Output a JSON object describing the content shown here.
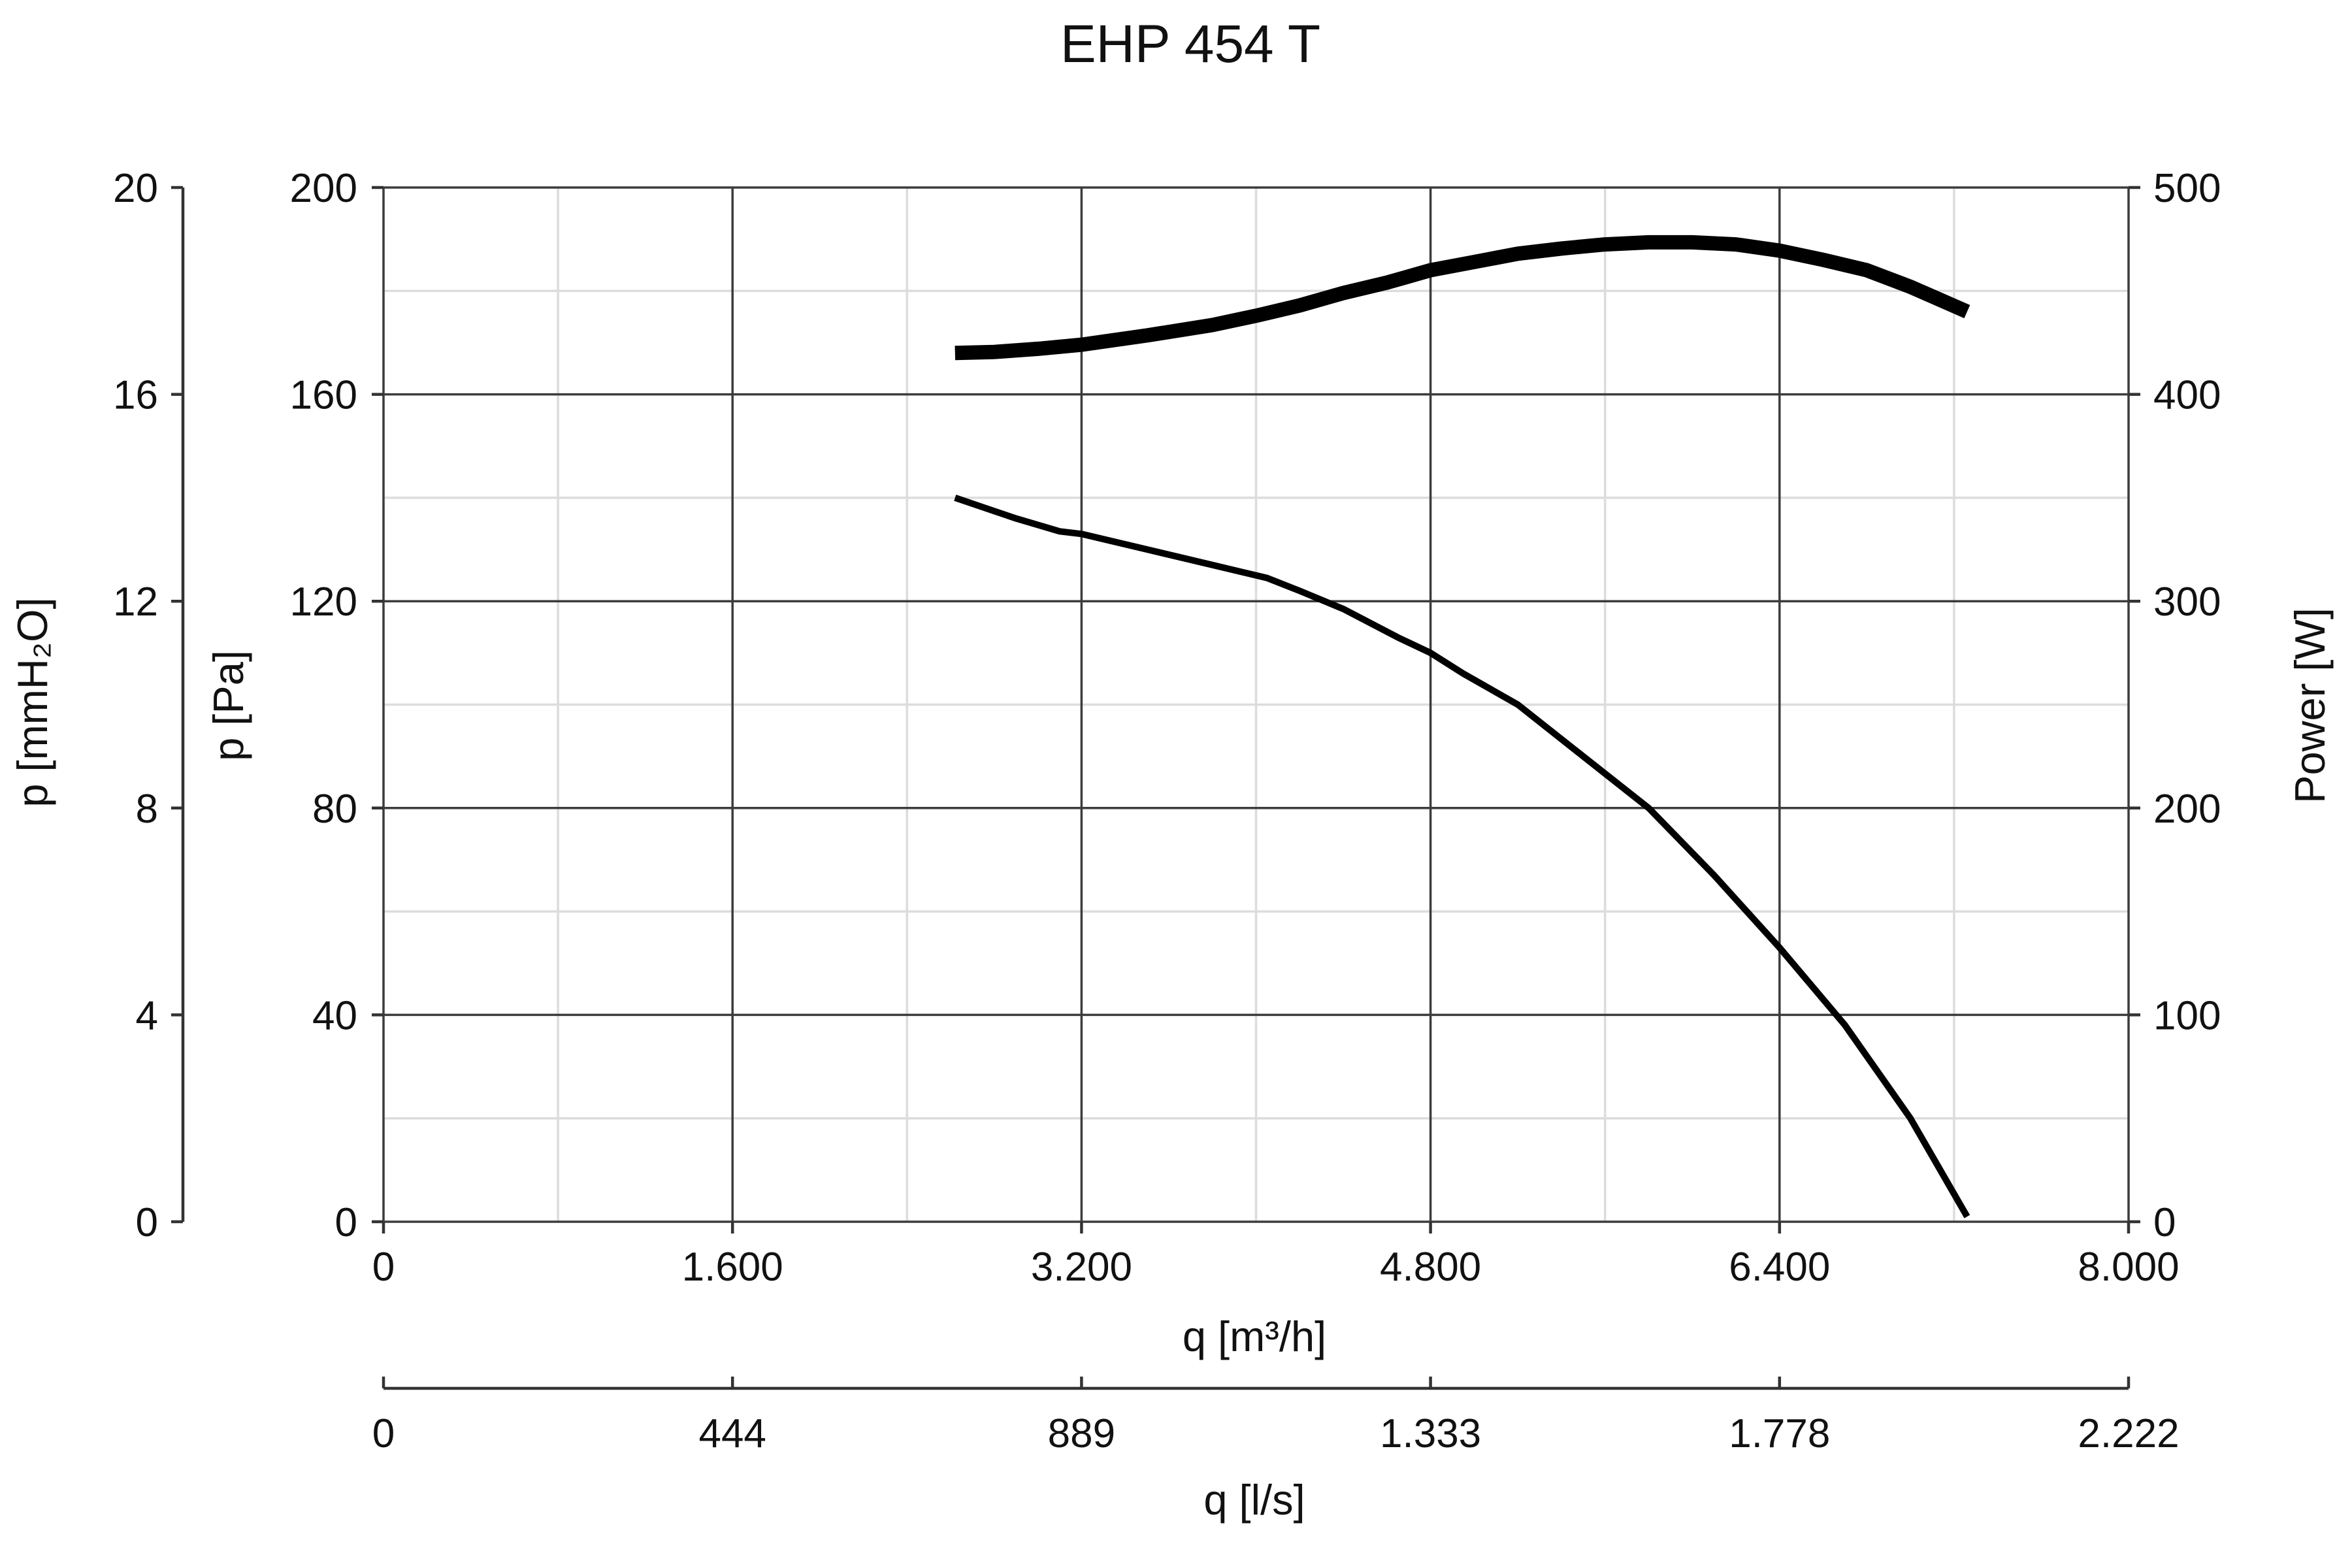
{
  "chart_data": {
    "type": "line",
    "title": "EHP 454 T",
    "xlabel": "q [m³/h]",
    "x2label": "q [l/s]",
    "ylabel": "p [Pa]",
    "ylabel2": "p [mmH₂O]",
    "ylabel_right": "Power [W]",
    "xlim": [
      0,
      8000
    ],
    "ylim": [
      0,
      200
    ],
    "ylim2": [
      0,
      20
    ],
    "ylim_right": [
      0,
      500
    ],
    "grid": true,
    "x_ticks": [
      "0",
      "1.600",
      "3.200",
      "4.800",
      "6.400",
      "8.000"
    ],
    "x2_ticks": [
      "0",
      "444",
      "889",
      "1.333",
      "1.778",
      "2.222"
    ],
    "y_ticks": [
      "0",
      "40",
      "80",
      "120",
      "160",
      "200"
    ],
    "y2_ticks": [
      "0",
      "4",
      "8",
      "12",
      "16",
      "20"
    ],
    "yright_ticks": [
      "0",
      "100",
      "200",
      "300",
      "400",
      "500"
    ],
    "series": [
      {
        "axis": "left",
        "line_weight": "thin",
        "x": [
          2620,
          2900,
          3100,
          3200,
          3500,
          3800,
          4050,
          4200,
          4400,
          4650,
          4800,
          4950,
          5200,
          5500,
          5800,
          6100,
          6400,
          6700,
          7000,
          7260
        ],
        "y": [
          140,
          136,
          133.5,
          133,
          130,
          127,
          124.5,
          122,
          118.5,
          113,
          110,
          106,
          100,
          90,
          80,
          67,
          53,
          38,
          20,
          1
        ]
      },
      {
        "axis": "right",
        "line_weight": "thick",
        "x": [
          2620,
          2800,
          3000,
          3200,
          3500,
          3800,
          4000,
          4200,
          4400,
          4600,
          4800,
          5000,
          5200,
          5400,
          5600,
          5800,
          6000,
          6200,
          6400,
          6600,
          6800,
          7000,
          7260
        ],
        "y": [
          420,
          420.5,
          422,
          424,
          428.5,
          433.5,
          438,
          443,
          449,
          454,
          460,
          464,
          468,
          470.5,
          472.5,
          473.5,
          473.5,
          472.5,
          469.5,
          465,
          460,
          452,
          440
        ]
      }
    ]
  }
}
